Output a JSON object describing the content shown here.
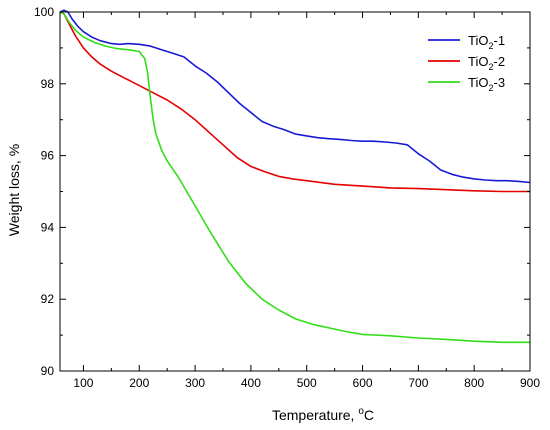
{
  "chart_data": {
    "type": "line",
    "title": "",
    "xlabel": "Temperature, °C",
    "xlabel_main": "Temperature, ",
    "xlabel_sup": "o",
    "xlabel_unit": "C",
    "ylabel": "Weight loss, %",
    "xlim": [
      58,
      900
    ],
    "ylim": [
      90,
      100
    ],
    "xticks": [
      100,
      200,
      300,
      400,
      500,
      600,
      700,
      800,
      900
    ],
    "yticks": [
      90,
      92,
      94,
      96,
      98,
      100
    ],
    "grid": false,
    "legend_position": "top-right",
    "series": [
      {
        "name": "TiO2-1",
        "label_pre": "TiO",
        "label_sub": "2",
        "label_post": "-1",
        "color": "#1a1ad6",
        "x": [
          58,
          65,
          72,
          80,
          90,
          100,
          115,
          130,
          150,
          165,
          180,
          200,
          220,
          240,
          260,
          280,
          300,
          320,
          340,
          360,
          380,
          400,
          420,
          440,
          460,
          480,
          500,
          520,
          540,
          560,
          580,
          600,
          620,
          640,
          660,
          680,
          700,
          720,
          740,
          760,
          780,
          800,
          820,
          840,
          860,
          880,
          900
        ],
        "y": [
          100.0,
          100.05,
          100.0,
          99.8,
          99.6,
          99.45,
          99.3,
          99.2,
          99.12,
          99.1,
          99.12,
          99.1,
          99.05,
          98.95,
          98.85,
          98.75,
          98.5,
          98.3,
          98.05,
          97.75,
          97.45,
          97.2,
          96.95,
          96.82,
          96.72,
          96.6,
          96.55,
          96.5,
          96.47,
          96.45,
          96.42,
          96.4,
          96.4,
          96.38,
          96.35,
          96.3,
          96.05,
          95.85,
          95.6,
          95.48,
          95.4,
          95.35,
          95.32,
          95.3,
          95.3,
          95.28,
          95.25
        ]
      },
      {
        "name": "TiO2-2",
        "label_pre": "TiO",
        "label_sub": "2",
        "label_post": "-2",
        "color": "#e60000",
        "x": [
          58,
          65,
          75,
          85,
          100,
          115,
          130,
          150,
          175,
          200,
          225,
          250,
          275,
          300,
          325,
          350,
          375,
          400,
          425,
          450,
          475,
          500,
          550,
          600,
          650,
          700,
          750,
          800,
          850,
          900
        ],
        "y": [
          100.0,
          99.95,
          99.65,
          99.35,
          99.0,
          98.75,
          98.55,
          98.35,
          98.15,
          97.95,
          97.75,
          97.55,
          97.3,
          97.0,
          96.65,
          96.3,
          95.95,
          95.7,
          95.55,
          95.42,
          95.35,
          95.3,
          95.2,
          95.15,
          95.1,
          95.08,
          95.05,
          95.02,
          95.0,
          95.0
        ]
      },
      {
        "name": "TiO2-3",
        "label_pre": "TiO",
        "label_sub": "2",
        "label_post": "-3",
        "color": "#33dd1a",
        "x": [
          58,
          65,
          75,
          85,
          100,
          120,
          140,
          160,
          180,
          200,
          210,
          215,
          220,
          225,
          230,
          240,
          250,
          270,
          300,
          330,
          360,
          390,
          420,
          450,
          480,
          510,
          540,
          570,
          600,
          650,
          700,
          750,
          800,
          850,
          900
        ],
        "y": [
          100.0,
          99.95,
          99.7,
          99.5,
          99.3,
          99.15,
          99.05,
          98.98,
          98.95,
          98.9,
          98.7,
          98.3,
          97.6,
          97.0,
          96.6,
          96.15,
          95.85,
          95.4,
          94.6,
          93.8,
          93.05,
          92.45,
          92.0,
          91.7,
          91.45,
          91.3,
          91.2,
          91.1,
          91.02,
          90.98,
          90.92,
          90.88,
          90.83,
          90.8,
          90.8
        ]
      }
    ]
  }
}
